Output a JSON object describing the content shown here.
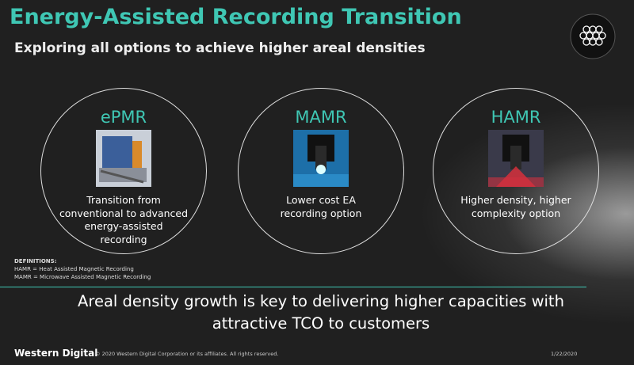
{
  "header": {
    "title": "Energy-Assisted Recording Transition",
    "subtitle": "Exploring all options to achieve higher areal densities"
  },
  "options": [
    {
      "name": "ePMR",
      "description": [
        "Transition from",
        "conventional to advanced",
        "energy-assisted",
        "recording"
      ]
    },
    {
      "name": "MAMR",
      "description": [
        "Lower cost EA",
        "recording option"
      ]
    },
    {
      "name": "HAMR",
      "description": [
        "Higher density, higher",
        "complexity option"
      ]
    }
  ],
  "definitions": {
    "heading": "DEFINITIONS:",
    "items": [
      "HAMR = Heat Assisted Magnetic Recording",
      "MAMR = Microwave Assisted Magnetic Recording"
    ]
  },
  "message": [
    "Areal density growth is key to delivering higher capacities with",
    "attractive TCO to customers"
  ],
  "footer": {
    "logo": "Western Digital",
    "copyright": "© 2020 Western Digital Corporation or its affiliates. All rights reserved.",
    "date": "1/22/2020"
  }
}
